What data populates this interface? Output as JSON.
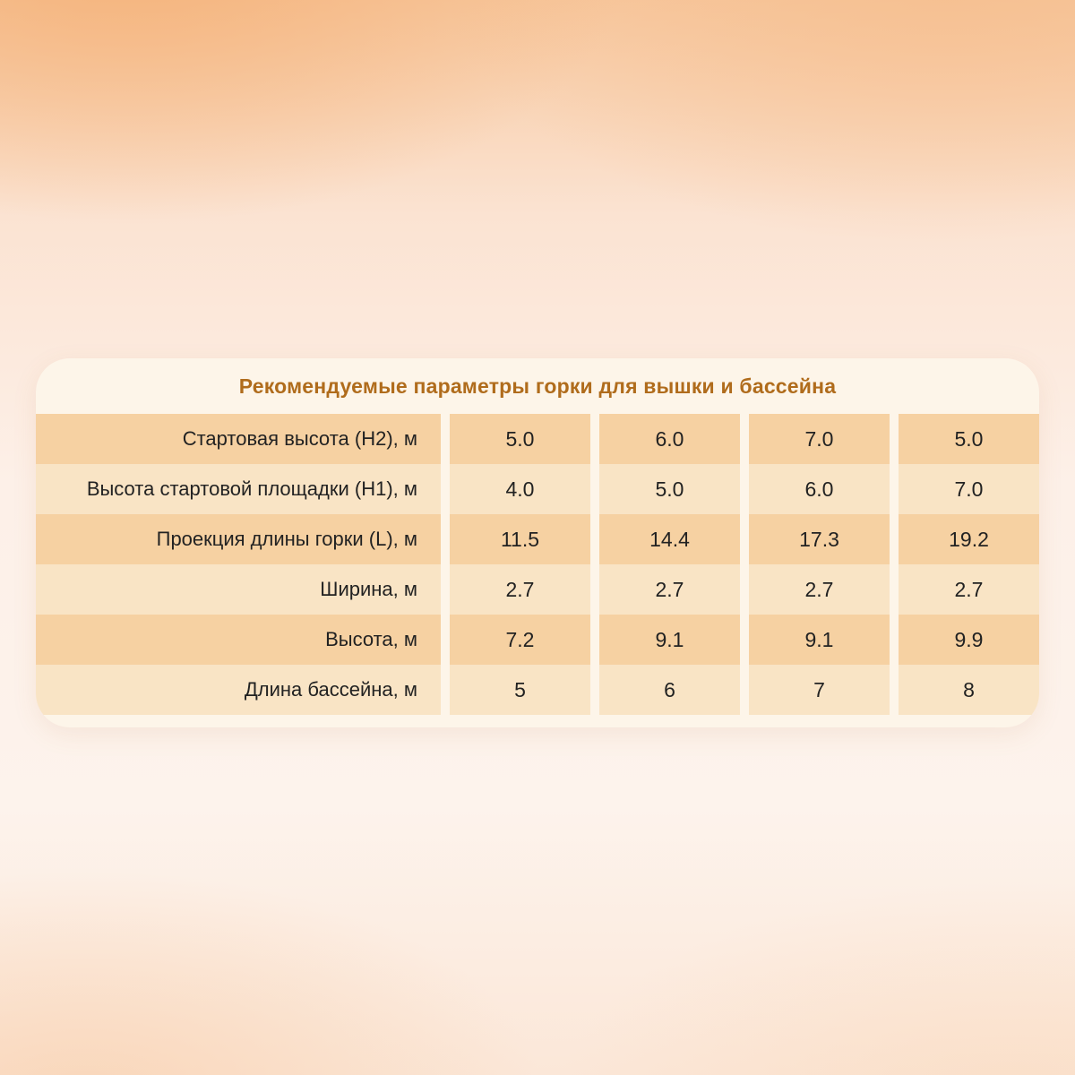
{
  "title": "Рекомендуемые параметры горки для вышки и бассейна",
  "table": {
    "rows": [
      {
        "label": "Стартовая высота (H2), м",
        "values": [
          "5.0",
          "6.0",
          "7.0",
          "5.0"
        ]
      },
      {
        "label": "Высота стартовой площадки (H1), м",
        "values": [
          "4.0",
          "5.0",
          "6.0",
          "7.0"
        ]
      },
      {
        "label": "Проекция длины горки (L), м",
        "values": [
          "11.5",
          "14.4",
          "17.3",
          "19.2"
        ]
      },
      {
        "label": "Ширина, м",
        "values": [
          "2.7",
          "2.7",
          "2.7",
          "2.7"
        ]
      },
      {
        "label": "Высота, м",
        "values": [
          "7.2",
          "9.1",
          "9.1",
          "9.9"
        ]
      },
      {
        "label": "Длина бассейна, м",
        "values": [
          "5",
          "6",
          "7",
          "8"
        ]
      }
    ]
  },
  "colors": {
    "row_dark": "#f6d1a2",
    "row_light": "#f9e4c5",
    "card_background": "#fdf5e9",
    "title_text": "#b06c1c",
    "cell_text": "#222222"
  },
  "chart_data": {
    "type": "table",
    "title": "Рекомендуемые параметры горки для вышки и бассейна",
    "row_headers": [
      "Стартовая высота (H2), м",
      "Высота стартовой площадки (H1), м",
      "Проекция длины горки (L), м",
      "Ширина, м",
      "Высота, м",
      "Длина бассейна, м"
    ],
    "values": [
      [
        5.0,
        6.0,
        7.0,
        5.0
      ],
      [
        4.0,
        5.0,
        6.0,
        7.0
      ],
      [
        11.5,
        14.4,
        17.3,
        19.2
      ],
      [
        2.7,
        2.7,
        2.7,
        2.7
      ],
      [
        7.2,
        9.1,
        9.1,
        9.9
      ],
      [
        5,
        6,
        7,
        8
      ]
    ],
    "legend_position": "none",
    "grid": false
  }
}
